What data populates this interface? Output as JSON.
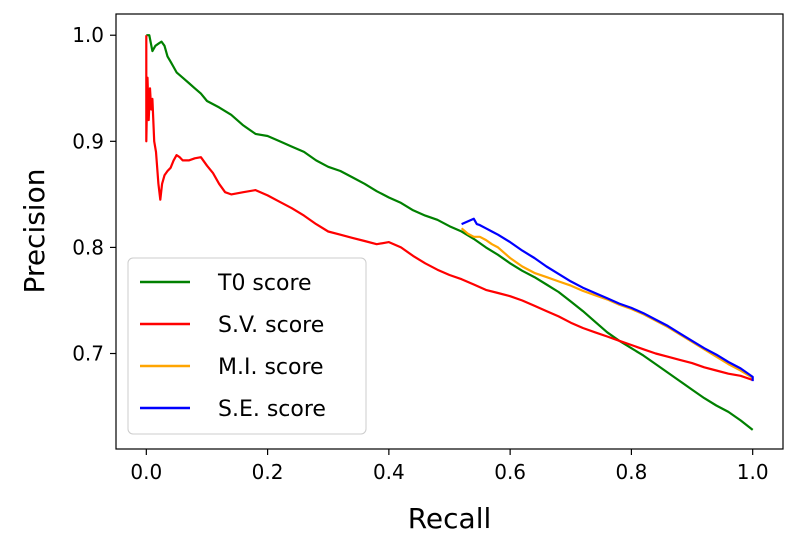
{
  "chart_data": {
    "type": "line",
    "xlabel": "Recall",
    "ylabel": "Precision",
    "xlim": [
      -0.05,
      1.05
    ],
    "ylim": [
      0.61,
      1.02
    ],
    "xticks": [
      0.0,
      0.2,
      0.4,
      0.6,
      0.8,
      1.0
    ],
    "xtick_labels": [
      "0.0",
      "0.2",
      "0.4",
      "0.6",
      "0.8",
      "1.0"
    ],
    "yticks": [
      0.7,
      0.8,
      0.9,
      1.0
    ],
    "ytick_labels": [
      "0.7",
      "0.8",
      "0.9",
      "1.0"
    ],
    "grid": false,
    "legend_position": "lower-left",
    "series": [
      {
        "name": "T0 score",
        "color": "#008000",
        "points": [
          [
            0.0,
            1.0
          ],
          [
            0.005,
            1.0
          ],
          [
            0.01,
            0.985
          ],
          [
            0.015,
            0.99
          ],
          [
            0.02,
            0.992
          ],
          [
            0.025,
            0.994
          ],
          [
            0.03,
            0.99
          ],
          [
            0.035,
            0.98
          ],
          [
            0.04,
            0.975
          ],
          [
            0.045,
            0.97
          ],
          [
            0.05,
            0.965
          ],
          [
            0.06,
            0.96
          ],
          [
            0.07,
            0.955
          ],
          [
            0.08,
            0.95
          ],
          [
            0.09,
            0.945
          ],
          [
            0.1,
            0.938
          ],
          [
            0.12,
            0.932
          ],
          [
            0.14,
            0.925
          ],
          [
            0.16,
            0.915
          ],
          [
            0.18,
            0.907
          ],
          [
            0.2,
            0.905
          ],
          [
            0.22,
            0.9
          ],
          [
            0.24,
            0.895
          ],
          [
            0.26,
            0.89
          ],
          [
            0.28,
            0.882
          ],
          [
            0.3,
            0.876
          ],
          [
            0.32,
            0.872
          ],
          [
            0.34,
            0.866
          ],
          [
            0.36,
            0.86
          ],
          [
            0.38,
            0.853
          ],
          [
            0.4,
            0.847
          ],
          [
            0.42,
            0.842
          ],
          [
            0.44,
            0.835
          ],
          [
            0.46,
            0.83
          ],
          [
            0.48,
            0.826
          ],
          [
            0.5,
            0.82
          ],
          [
            0.52,
            0.815
          ],
          [
            0.54,
            0.808
          ],
          [
            0.56,
            0.8
          ],
          [
            0.58,
            0.793
          ],
          [
            0.6,
            0.785
          ],
          [
            0.62,
            0.778
          ],
          [
            0.64,
            0.772
          ],
          [
            0.66,
            0.765
          ],
          [
            0.68,
            0.758
          ],
          [
            0.7,
            0.749
          ],
          [
            0.72,
            0.74
          ],
          [
            0.74,
            0.73
          ],
          [
            0.76,
            0.72
          ],
          [
            0.78,
            0.712
          ],
          [
            0.8,
            0.705
          ],
          [
            0.82,
            0.698
          ],
          [
            0.84,
            0.69
          ],
          [
            0.86,
            0.682
          ],
          [
            0.88,
            0.674
          ],
          [
            0.9,
            0.666
          ],
          [
            0.92,
            0.658
          ],
          [
            0.94,
            0.651
          ],
          [
            0.96,
            0.645
          ],
          [
            0.98,
            0.637
          ],
          [
            1.0,
            0.628
          ]
        ]
      },
      {
        "name": "S.V. score",
        "color": "#ff0000",
        "points": [
          [
            0.0,
            1.0
          ],
          [
            0.0,
            0.9
          ],
          [
            0.002,
            0.96
          ],
          [
            0.004,
            0.92
          ],
          [
            0.006,
            0.95
          ],
          [
            0.008,
            0.93
          ],
          [
            0.01,
            0.94
          ],
          [
            0.013,
            0.9
          ],
          [
            0.016,
            0.89
          ],
          [
            0.02,
            0.86
          ],
          [
            0.023,
            0.845
          ],
          [
            0.026,
            0.86
          ],
          [
            0.03,
            0.868
          ],
          [
            0.035,
            0.872
          ],
          [
            0.04,
            0.875
          ],
          [
            0.045,
            0.882
          ],
          [
            0.05,
            0.887
          ],
          [
            0.055,
            0.885
          ],
          [
            0.06,
            0.882
          ],
          [
            0.07,
            0.882
          ],
          [
            0.08,
            0.884
          ],
          [
            0.09,
            0.885
          ],
          [
            0.1,
            0.877
          ],
          [
            0.11,
            0.87
          ],
          [
            0.12,
            0.86
          ],
          [
            0.13,
            0.852
          ],
          [
            0.14,
            0.85
          ],
          [
            0.16,
            0.852
          ],
          [
            0.18,
            0.854
          ],
          [
            0.2,
            0.849
          ],
          [
            0.22,
            0.843
          ],
          [
            0.24,
            0.837
          ],
          [
            0.26,
            0.83
          ],
          [
            0.28,
            0.822
          ],
          [
            0.3,
            0.815
          ],
          [
            0.32,
            0.812
          ],
          [
            0.34,
            0.809
          ],
          [
            0.36,
            0.806
          ],
          [
            0.38,
            0.803
          ],
          [
            0.4,
            0.805
          ],
          [
            0.42,
            0.8
          ],
          [
            0.44,
            0.792
          ],
          [
            0.46,
            0.785
          ],
          [
            0.48,
            0.779
          ],
          [
            0.5,
            0.774
          ],
          [
            0.52,
            0.77
          ],
          [
            0.54,
            0.765
          ],
          [
            0.56,
            0.76
          ],
          [
            0.58,
            0.757
          ],
          [
            0.6,
            0.754
          ],
          [
            0.62,
            0.75
          ],
          [
            0.64,
            0.745
          ],
          [
            0.66,
            0.74
          ],
          [
            0.68,
            0.735
          ],
          [
            0.7,
            0.729
          ],
          [
            0.72,
            0.724
          ],
          [
            0.74,
            0.72
          ],
          [
            0.76,
            0.716
          ],
          [
            0.78,
            0.712
          ],
          [
            0.8,
            0.708
          ],
          [
            0.82,
            0.704
          ],
          [
            0.84,
            0.7
          ],
          [
            0.86,
            0.697
          ],
          [
            0.88,
            0.694
          ],
          [
            0.9,
            0.691
          ],
          [
            0.92,
            0.687
          ],
          [
            0.94,
            0.684
          ],
          [
            0.96,
            0.681
          ],
          [
            0.98,
            0.679
          ],
          [
            1.0,
            0.675
          ]
        ]
      },
      {
        "name": "M.I. score",
        "color": "#ffa500",
        "points": [
          [
            0.52,
            0.818
          ],
          [
            0.53,
            0.813
          ],
          [
            0.54,
            0.81
          ],
          [
            0.55,
            0.81
          ],
          [
            0.56,
            0.807
          ],
          [
            0.57,
            0.803
          ],
          [
            0.58,
            0.8
          ],
          [
            0.6,
            0.79
          ],
          [
            0.62,
            0.782
          ],
          [
            0.64,
            0.776
          ],
          [
            0.66,
            0.772
          ],
          [
            0.68,
            0.768
          ],
          [
            0.7,
            0.764
          ],
          [
            0.72,
            0.759
          ],
          [
            0.74,
            0.755
          ],
          [
            0.76,
            0.751
          ],
          [
            0.78,
            0.746
          ],
          [
            0.8,
            0.742
          ],
          [
            0.82,
            0.737
          ],
          [
            0.84,
            0.731
          ],
          [
            0.86,
            0.725
          ],
          [
            0.88,
            0.718
          ],
          [
            0.9,
            0.711
          ],
          [
            0.92,
            0.704
          ],
          [
            0.94,
            0.697
          ],
          [
            0.96,
            0.69
          ],
          [
            0.98,
            0.684
          ],
          [
            1.0,
            0.677
          ]
        ]
      },
      {
        "name": "S.E. score",
        "color": "#0000ff",
        "points": [
          [
            0.52,
            0.822
          ],
          [
            0.54,
            0.827
          ],
          [
            0.545,
            0.822
          ],
          [
            0.55,
            0.821
          ],
          [
            0.56,
            0.818
          ],
          [
            0.57,
            0.815
          ],
          [
            0.58,
            0.812
          ],
          [
            0.6,
            0.805
          ],
          [
            0.62,
            0.797
          ],
          [
            0.64,
            0.79
          ],
          [
            0.66,
            0.782
          ],
          [
            0.68,
            0.775
          ],
          [
            0.7,
            0.768
          ],
          [
            0.72,
            0.762
          ],
          [
            0.74,
            0.757
          ],
          [
            0.76,
            0.752
          ],
          [
            0.78,
            0.747
          ],
          [
            0.8,
            0.743
          ],
          [
            0.82,
            0.738
          ],
          [
            0.84,
            0.732
          ],
          [
            0.86,
            0.726
          ],
          [
            0.88,
            0.719
          ],
          [
            0.9,
            0.712
          ],
          [
            0.92,
            0.705
          ],
          [
            0.94,
            0.699
          ],
          [
            0.96,
            0.692
          ],
          [
            0.98,
            0.686
          ],
          [
            1.0,
            0.678
          ],
          [
            1.0,
            0.674
          ]
        ]
      }
    ]
  }
}
